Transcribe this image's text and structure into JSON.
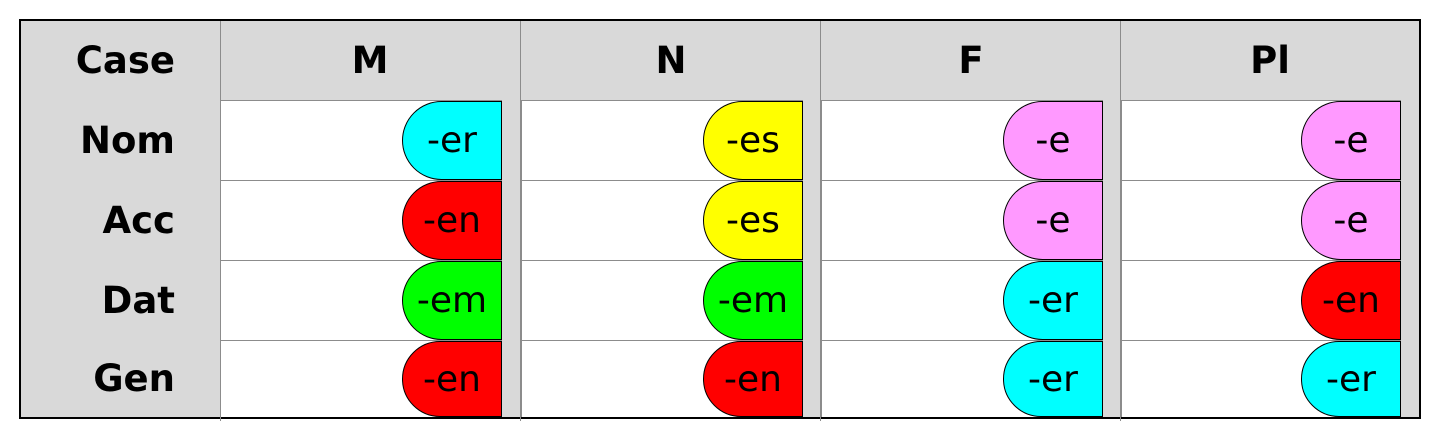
{
  "colors": {
    "cyan": "#00ffff",
    "red": "#ff0000",
    "yellow": "#ffff00",
    "pink": "#ff99ff",
    "green": "#00ff00"
  },
  "header": {
    "case": "Case",
    "columns": [
      "M",
      "N",
      "F",
      "Pl"
    ]
  },
  "rows": [
    {
      "case": "Nom",
      "endings": [
        {
          "text": "-er",
          "color": "#00ffff"
        },
        {
          "text": "-es",
          "color": "#ffff00"
        },
        {
          "text": "-e",
          "color": "#ff99ff"
        },
        {
          "text": "-e",
          "color": "#ff99ff"
        }
      ]
    },
    {
      "case": "Acc",
      "endings": [
        {
          "text": "-en",
          "color": "#ff0000"
        },
        {
          "text": "-es",
          "color": "#ffff00"
        },
        {
          "text": "-e",
          "color": "#ff99ff"
        },
        {
          "text": "-e",
          "color": "#ff99ff"
        }
      ]
    },
    {
      "case": "Dat",
      "endings": [
        {
          "text": "-em",
          "color": "#00ff00"
        },
        {
          "text": "-em",
          "color": "#00ff00"
        },
        {
          "text": "-er",
          "color": "#00ffff"
        },
        {
          "text": "-en",
          "color": "#ff0000"
        }
      ]
    },
    {
      "case": "Gen",
      "endings": [
        {
          "text": "-en",
          "color": "#ff0000"
        },
        {
          "text": "-en",
          "color": "#ff0000"
        },
        {
          "text": "-er",
          "color": "#00ffff"
        },
        {
          "text": "-er",
          "color": "#00ffff"
        }
      ]
    }
  ]
}
